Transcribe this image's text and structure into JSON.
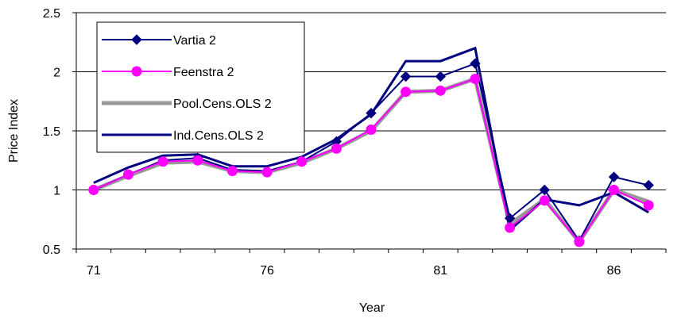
{
  "chart_data": {
    "type": "line",
    "xlabel": "Year",
    "ylabel": "Price Index",
    "x": [
      71,
      72,
      73,
      74,
      75,
      76,
      77,
      78,
      79,
      80,
      81,
      82,
      83,
      84,
      85,
      86,
      87
    ],
    "x_tick_labels": [
      "71",
      "76",
      "81",
      "86"
    ],
    "x_tick_values": [
      71,
      76,
      81,
      86
    ],
    "ylim": [
      0.5,
      2.5
    ],
    "y_tick_labels": [
      "0.5",
      "1",
      "1.5",
      "2",
      "2.5"
    ],
    "y_tick_values": [
      0.5,
      1,
      1.5,
      2,
      2.5
    ],
    "grid": "horizontal",
    "legend_position": "top-left",
    "series": [
      {
        "name": "Vartia 2",
        "color": "#000080",
        "marker": "diamond",
        "values": [
          1.0,
          1.13,
          1.25,
          1.27,
          1.17,
          1.16,
          1.24,
          1.41,
          1.65,
          1.96,
          1.96,
          2.07,
          0.76,
          1.0,
          0.57,
          1.11,
          1.04
        ]
      },
      {
        "name": "Feenstra 2",
        "color": "#ff00ff",
        "marker": "circle",
        "values": [
          1.0,
          1.13,
          1.24,
          1.25,
          1.16,
          1.15,
          1.24,
          1.35,
          1.51,
          1.83,
          1.84,
          1.94,
          0.68,
          0.91,
          0.56,
          1.0,
          0.87
        ]
      },
      {
        "name": "Pool.Cens.OLS 2",
        "color": "#999999",
        "marker": "none",
        "values": [
          1.0,
          1.12,
          1.23,
          1.24,
          1.16,
          1.15,
          1.23,
          1.35,
          1.5,
          1.83,
          1.84,
          1.94,
          0.71,
          0.92,
          0.56,
          1.0,
          0.9
        ]
      },
      {
        "name": "Ind.Cens.OLS 2",
        "color": "#000080",
        "marker": "none",
        "values": [
          1.06,
          1.19,
          1.29,
          1.3,
          1.2,
          1.2,
          1.28,
          1.43,
          1.64,
          2.09,
          2.09,
          2.2,
          0.66,
          0.92,
          0.87,
          0.98,
          0.81
        ]
      }
    ]
  }
}
